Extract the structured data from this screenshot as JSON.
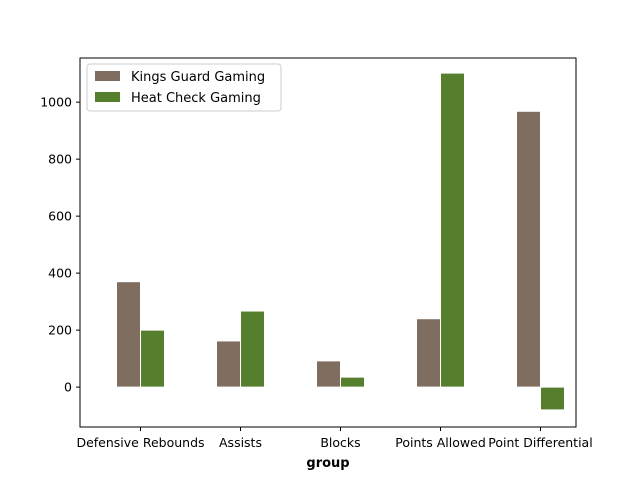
{
  "chart_data": {
    "type": "bar",
    "title": "",
    "xlabel": "group",
    "ylabel": "",
    "categories": [
      "Defensive Rebounds",
      "Assists",
      "Blocks",
      "Points Allowed",
      "Point Differential"
    ],
    "series": [
      {
        "name": "Kings Guard Gaming",
        "values": [
          370,
          162,
          92,
          240,
          968
        ],
        "color": "#7f6d5f"
      },
      {
        "name": "Heat Check Gaming",
        "values": [
          200,
          267,
          35,
          1102,
          -80
        ],
        "color": "#557f2d"
      }
    ],
    "yticks": [
      0,
      200,
      400,
      600,
      800,
      1000
    ],
    "ylim": [
      -140,
      1155
    ],
    "grid": false,
    "legend_position": "upper-left"
  }
}
